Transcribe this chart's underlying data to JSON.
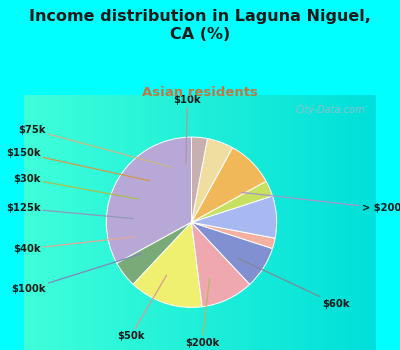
{
  "title": "Income distribution in Laguna Niguel,\nCA (%)",
  "subtitle": "Asian residents",
  "title_color": "#1a1a1a",
  "subtitle_color": "#c07840",
  "background_color": "#00ffff",
  "watermark": "City-Data.com",
  "labels": [
    "> $200k",
    "$60k",
    "$200k",
    "$50k",
    "$100k",
    "$40k",
    "$125k",
    "$30k",
    "$150k",
    "$75k",
    "$10k"
  ],
  "values": [
    33,
    5,
    14,
    10,
    8,
    2,
    8,
    3,
    9,
    5,
    3
  ],
  "colors": [
    "#b8a8d8",
    "#7aaa78",
    "#f0f070",
    "#f0a8b0",
    "#8090d0",
    "#f4b0a0",
    "#a8b8f0",
    "#c8e060",
    "#f0b858",
    "#f0dda0",
    "#c8b0b0"
  ],
  "startangle": 90,
  "label_line_colors": [
    "#a898c8",
    "#808898",
    "#b8b860",
    "#d89898",
    "#8088b8",
    "#e0a898",
    "#9098b8",
    "#a8c048",
    "#d09848",
    "#c8b888",
    "#b09898"
  ]
}
